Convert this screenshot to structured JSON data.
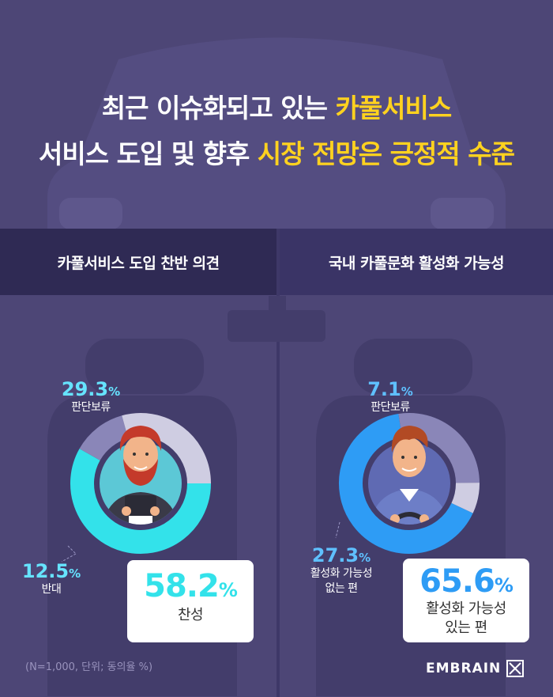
{
  "title": {
    "line1_plain": "최근 이슈화되고 있는 ",
    "line1_highlight": "카풀서비스",
    "line2_plain": "서비스 도입 및 향후 ",
    "line2_highlight": "시장 전망은 긍정적 수준"
  },
  "colors": {
    "background": "#4d4676",
    "highlight": "#ffd21f",
    "accent_cyan": "#33e2ea",
    "accent_blue": "#2e9cf5"
  },
  "chart_data": [
    {
      "type": "pie",
      "title": "카풀서비스 도입 찬반 의견",
      "unit": "%",
      "slices": [
        {
          "label": "찬성",
          "value": 58.2,
          "color": "#33e2ea"
        },
        {
          "label": "반대",
          "value": 12.5,
          "color": "#8a86b8"
        },
        {
          "label": "판단보류",
          "value": 29.3,
          "color": "#cfcde2"
        }
      ]
    },
    {
      "type": "pie",
      "title": "국내 카풀문화 활성화 가능성",
      "unit": "%",
      "slices": [
        {
          "label": "활성화 가능성 있는 편",
          "value": 65.6,
          "color": "#2e9cf5"
        },
        {
          "label": "활성화 가능성 없는 편",
          "value": 27.3,
          "color": "#8a86b8"
        },
        {
          "label": "판단보류",
          "value": 7.1,
          "color": "#cfcde2"
        }
      ]
    }
  ],
  "left": {
    "header": "카풀서비스 도입 찬반 의견",
    "main_value": "58.2",
    "main_label": "찬성",
    "hold_value": "29.3",
    "hold_label": "판단보류",
    "oppose_value": "12.5",
    "oppose_label": "반대"
  },
  "right": {
    "header": "국내 카풀문화 활성화 가능성",
    "main_value": "65.6",
    "main_label_1": "활성화 가능성",
    "main_label_2": "있는 편",
    "hold_value": "7.1",
    "hold_label": "판단보류",
    "no_value": "27.3",
    "no_label_1": "활성화 가능성",
    "no_label_2": "없는 편"
  },
  "unit_symbol": "%",
  "footnote": "(N=1,000, 단위; 동의율 %)",
  "brand": "EMBRAIN"
}
